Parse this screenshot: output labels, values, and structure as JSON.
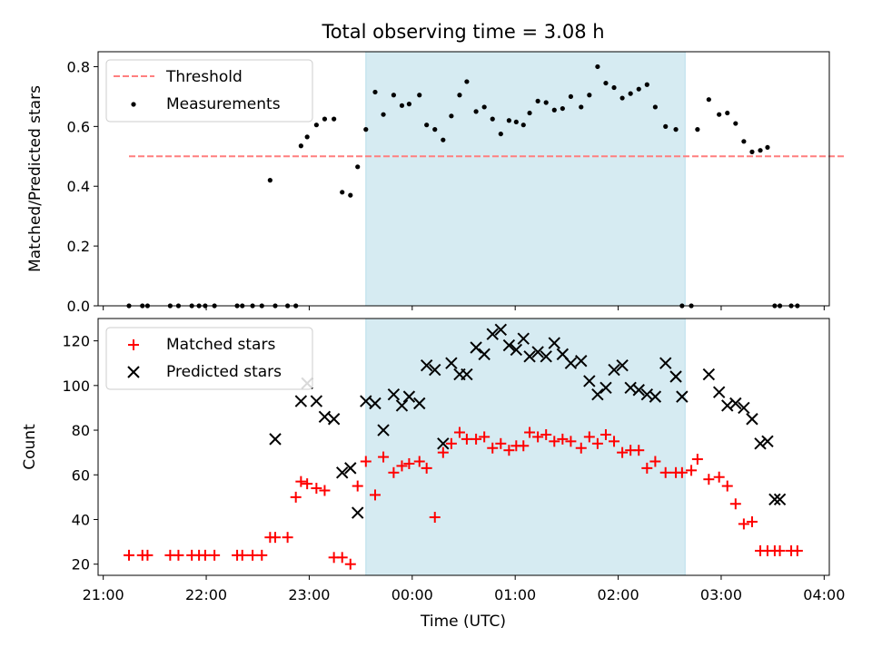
{
  "chart_data": {
    "title": "Total observing time = 3.08 h",
    "xlabel": "Time (UTC)",
    "x_unit": "hours",
    "x_ticks": [
      {
        "value": 21,
        "label": "21:00"
      },
      {
        "value": 22,
        "label": "22:00"
      },
      {
        "value": 23,
        "label": "23:00"
      },
      {
        "value": 24,
        "label": "00:00"
      },
      {
        "value": 25,
        "label": "01:00"
      },
      {
        "value": 26,
        "label": "02:00"
      },
      {
        "value": 27,
        "label": "03:00"
      },
      {
        "value": 28,
        "label": "04:00"
      }
    ],
    "xlim": [
      20.95,
      28.05
    ],
    "shaded_region": {
      "x_start": 23.55,
      "x_end": 26.65,
      "color": "#add8e6"
    },
    "top": {
      "type": "scatter",
      "ylabel": "Matched/Predicted stars",
      "ylim": [
        0,
        0.85
      ],
      "y_ticks": [
        "0.0",
        "0.2",
        "0.4",
        "0.6",
        "0.8"
      ],
      "legend": {
        "position": "top-left",
        "entries": [
          "Threshold",
          "Measurements"
        ]
      },
      "threshold": {
        "name": "Threshold",
        "value": 0.5,
        "x_start": 21.25,
        "x_end": 28.2,
        "color": "#ff7f7f"
      },
      "measurements": {
        "name": "Measurements",
        "color": "#000000",
        "x": [
          21.25,
          21.38,
          21.43,
          21.65,
          21.73,
          21.86,
          21.93,
          21.99,
          22.08,
          22.3,
          22.35,
          22.45,
          22.54,
          22.62,
          22.67,
          22.79,
          22.87,
          22.92,
          22.98,
          23.07,
          23.15,
          23.24,
          23.32,
          23.4,
          23.47,
          23.55,
          23.64,
          23.72,
          23.82,
          23.9,
          23.97,
          24.07,
          24.14,
          24.22,
          24.3,
          24.38,
          24.46,
          24.53,
          24.62,
          24.7,
          24.78,
          24.86,
          24.94,
          25.01,
          25.08,
          25.14,
          25.22,
          25.3,
          25.38,
          25.46,
          25.54,
          25.64,
          25.72,
          25.8,
          25.88,
          25.96,
          26.04,
          26.12,
          26.2,
          26.28,
          26.36,
          26.46,
          26.56,
          26.62,
          26.71,
          26.77,
          26.88,
          26.98,
          27.06,
          27.14,
          27.22,
          27.3,
          27.38,
          27.45,
          27.52,
          27.57,
          27.68,
          27.74
        ],
        "y": [
          0,
          0,
          0,
          0,
          0,
          0,
          0,
          0,
          0,
          0,
          0,
          0,
          0,
          0.42,
          0,
          0,
          0,
          0.535,
          0.565,
          0.605,
          0.625,
          0.625,
          0.38,
          0.37,
          0.465,
          0.59,
          0.715,
          0.64,
          0.705,
          0.67,
          0.675,
          0.705,
          0.605,
          0.59,
          0.555,
          0.635,
          0.705,
          0.75,
          0.65,
          0.665,
          0.625,
          0.575,
          0.62,
          0.615,
          0.605,
          0.645,
          0.685,
          0.68,
          0.655,
          0.66,
          0.7,
          0.665,
          0.705,
          0.8,
          0.745,
          0.73,
          0.695,
          0.71,
          0.725,
          0.74,
          0.665,
          0.6,
          0.59,
          0,
          0,
          0.59,
          0.69,
          0.64,
          0.645,
          0.61,
          0.55,
          0.515,
          0.52,
          0.53,
          0,
          0,
          0,
          0
        ]
      }
    },
    "bottom": {
      "type": "scatter",
      "ylabel": "Count",
      "ylim": [
        15,
        130
      ],
      "y_ticks": [
        "20",
        "40",
        "60",
        "80",
        "100",
        "120"
      ],
      "legend": {
        "position": "top-left",
        "entries": [
          "Matched stars",
          "Predicted stars"
        ]
      },
      "matched": {
        "name": "Matched stars",
        "color": "#ff0000",
        "x": [
          21.25,
          21.38,
          21.43,
          21.65,
          21.73,
          21.86,
          21.93,
          21.99,
          22.08,
          22.3,
          22.35,
          22.45,
          22.54,
          22.62,
          22.67,
          22.79,
          22.87,
          22.92,
          22.98,
          23.07,
          23.15,
          23.24,
          23.32,
          23.4,
          23.47,
          23.55,
          23.64,
          23.72,
          23.82,
          23.9,
          23.97,
          24.07,
          24.14,
          24.22,
          24.3,
          24.38,
          24.46,
          24.53,
          24.62,
          24.7,
          24.78,
          24.86,
          24.94,
          25.01,
          25.08,
          25.14,
          25.22,
          25.3,
          25.38,
          25.46,
          25.54,
          25.64,
          25.72,
          25.8,
          25.88,
          25.96,
          26.04,
          26.12,
          26.2,
          26.28,
          26.36,
          26.46,
          26.56,
          26.62,
          26.71,
          26.77,
          26.88,
          26.98,
          27.06,
          27.14,
          27.22,
          27.3,
          27.38,
          27.45,
          27.52,
          27.57,
          27.68,
          27.74
        ],
        "y": [
          24,
          24,
          24,
          24,
          24,
          24,
          24,
          24,
          24,
          24,
          24,
          24,
          24,
          32,
          32,
          32,
          50,
          57,
          56,
          54,
          53,
          23,
          23,
          20,
          55,
          66,
          51,
          68,
          61,
          64,
          65,
          66,
          63,
          41,
          70,
          74,
          79,
          76,
          76,
          77,
          72,
          74,
          71,
          73,
          73,
          79,
          77,
          78,
          75,
          76,
          75,
          72,
          77,
          74,
          78,
          75,
          70,
          71,
          71,
          63,
          66,
          61,
          61,
          61,
          62,
          67,
          58,
          59,
          55,
          47,
          38,
          39,
          26,
          26,
          26,
          26,
          26,
          26
        ]
      },
      "predicted": {
        "name": "Predicted stars",
        "color": "#000000",
        "x": [
          22.67,
          22.92,
          22.98,
          23.07,
          23.15,
          23.24,
          23.32,
          23.4,
          23.47,
          23.55,
          23.64,
          23.72,
          23.82,
          23.9,
          23.97,
          24.07,
          24.14,
          24.22,
          24.3,
          24.38,
          24.46,
          24.53,
          24.62,
          24.7,
          24.78,
          24.86,
          24.94,
          25.01,
          25.08,
          25.14,
          25.22,
          25.3,
          25.38,
          25.46,
          25.54,
          25.64,
          25.72,
          25.8,
          25.88,
          25.96,
          26.04,
          26.12,
          26.2,
          26.28,
          26.36,
          26.46,
          26.56,
          26.62,
          26.88,
          26.98,
          27.06,
          27.14,
          27.22,
          27.3,
          27.38,
          27.45,
          27.52,
          27.57
        ],
        "y": [
          76,
          93,
          101,
          93,
          86,
          85,
          61,
          63,
          43,
          93,
          92,
          80,
          96,
          91,
          95,
          92,
          109,
          107,
          74,
          110,
          105,
          105,
          117,
          114,
          123,
          125,
          118,
          116,
          121,
          113,
          115,
          113,
          119,
          114,
          110,
          111,
          102,
          96,
          99,
          107,
          109,
          99,
          98,
          96,
          95,
          110,
          104,
          95,
          105,
          97,
          91,
          92,
          90,
          85,
          74,
          75,
          49,
          49
        ]
      }
    }
  }
}
